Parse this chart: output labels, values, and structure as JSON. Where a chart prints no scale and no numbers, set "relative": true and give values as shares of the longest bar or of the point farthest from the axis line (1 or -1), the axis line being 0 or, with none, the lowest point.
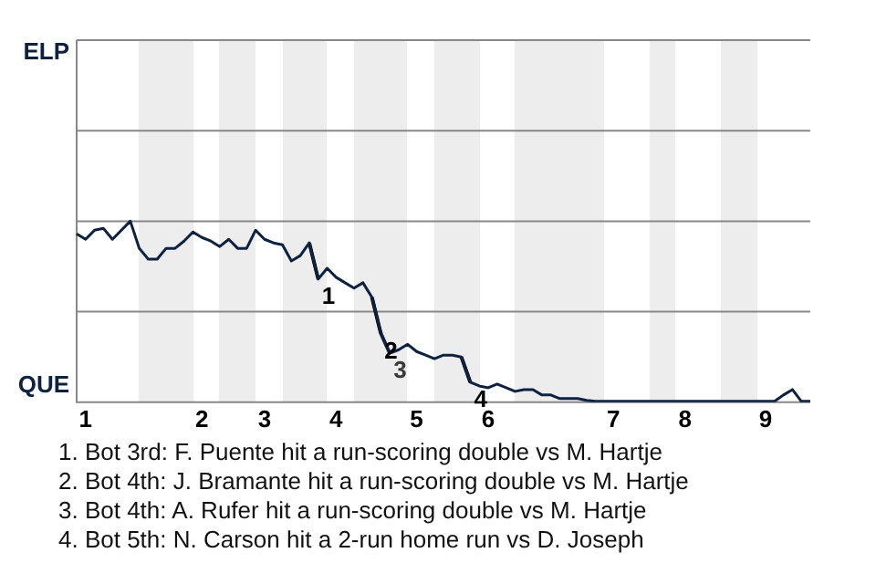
{
  "chart_data": {
    "type": "line",
    "relative": true,
    "categories": [
      null,
      "1",
      null,
      null,
      null,
      null,
      null,
      null,
      null,
      null,
      null,
      null,
      null,
      null,
      "2",
      null,
      null,
      null,
      null,
      null,
      null,
      "3",
      null,
      null,
      null,
      null,
      null,
      null,
      null,
      "4",
      null,
      null,
      null,
      null,
      null,
      null,
      null,
      null,
      "5",
      null,
      null,
      null,
      null,
      null,
      null,
      null,
      "6",
      null,
      null,
      null,
      null,
      null,
      null,
      null,
      null,
      null,
      null,
      null,
      null,
      null,
      "7",
      null,
      null,
      null,
      null,
      null,
      null,
      null,
      "8",
      null,
      null,
      null,
      null,
      null,
      null,
      null,
      null,
      "9",
      null,
      null,
      null,
      null,
      null
    ],
    "series": [
      {
        "color": "#0d2240",
        "values": [
          0.93,
          0.9,
          0.95,
          0.96,
          0.9,
          0.95,
          1,
          0.85,
          0.79,
          0.79,
          0.85,
          0.85,
          0.89,
          0.94,
          0.91,
          0.89,
          0.86,
          0.9,
          0.85,
          0.85,
          0.95,
          0.9,
          0.88,
          0.87,
          0.78,
          0.81,
          0.88,
          0.68,
          0.74,
          0.69,
          0.66,
          0.63,
          0.66,
          0.58,
          0.38,
          0.27,
          0.29,
          0.32,
          0.28,
          0.26,
          0.24,
          0.26,
          0.26,
          0.25,
          0.11,
          0.09,
          0.08,
          0.1,
          0.08,
          0.06,
          0.07,
          0.07,
          0.04,
          0.04,
          0.02,
          0.02,
          0.02,
          0.01,
          0.005,
          0.005,
          0.005,
          0.005,
          0.005,
          0.005,
          0.005,
          0.005,
          0.005,
          0.005,
          0.005,
          0.005,
          0.005,
          0.005,
          0.005,
          0.005,
          0.005,
          0.005,
          0.005,
          0.005,
          0.005,
          0.04,
          0.07,
          0.005,
          0.005
        ]
      },
      {
        "name": "1",
        "color": "#000000",
        "values": [
          null,
          null,
          null,
          null,
          null,
          null,
          null,
          null,
          null,
          null,
          null,
          null,
          null,
          null,
          null,
          null,
          null,
          null,
          null,
          null,
          null,
          null,
          null,
          null,
          null,
          null,
          0.88,
          0.68,
          null,
          null,
          null,
          null,
          null,
          null,
          null,
          null,
          null,
          null,
          null,
          null,
          null,
          null,
          null,
          null,
          null,
          null,
          null,
          null,
          null,
          null,
          null,
          null,
          null,
          null,
          null,
          null,
          null,
          null,
          null,
          null,
          null,
          null,
          null,
          null,
          null,
          null,
          null,
          null,
          null,
          null,
          null,
          null,
          null,
          null,
          null,
          null,
          null,
          null,
          null,
          null,
          null,
          null,
          null
        ]
      },
      {
        "name": "2",
        "color": "#000000",
        "values": [
          null,
          null,
          null,
          null,
          null,
          null,
          null,
          null,
          null,
          null,
          null,
          null,
          null,
          null,
          null,
          null,
          null,
          null,
          null,
          null,
          null,
          null,
          null,
          null,
          null,
          null,
          null,
          null,
          null,
          null,
          null,
          null,
          null,
          0.58,
          0.38,
          null,
          null,
          null,
          null,
          null,
          null,
          null,
          null,
          null,
          null,
          null,
          null,
          null,
          null,
          null,
          null,
          null,
          null,
          null,
          null,
          null,
          null,
          null,
          null,
          null,
          null,
          null,
          null,
          null,
          null,
          null,
          null,
          null,
          null,
          null,
          null,
          null,
          null,
          null,
          null,
          null,
          null,
          null,
          null,
          null,
          null,
          null,
          null
        ]
      },
      {
        "name": "3",
        "color": "#3a3a3a",
        "values": [
          null,
          null,
          null,
          null,
          null,
          null,
          null,
          null,
          null,
          null,
          null,
          null,
          null,
          null,
          null,
          null,
          null,
          null,
          null,
          null,
          null,
          null,
          null,
          null,
          null,
          null,
          null,
          null,
          null,
          null,
          null,
          null,
          null,
          null,
          0.38,
          0.27,
          null,
          null,
          null,
          null,
          null,
          null,
          null,
          null,
          null,
          null,
          null,
          null,
          null,
          null,
          null,
          null,
          null,
          null,
          null,
          null,
          null,
          null,
          null,
          null,
          null,
          null,
          null,
          null,
          null,
          null,
          null,
          null,
          null,
          null,
          null,
          null,
          null,
          null,
          null,
          null,
          null,
          null,
          null,
          null,
          null,
          null,
          null
        ]
      },
      {
        "name": "4",
        "color": "#000000",
        "values": [
          null,
          null,
          null,
          null,
          null,
          null,
          null,
          null,
          null,
          null,
          null,
          null,
          null,
          null,
          null,
          null,
          null,
          null,
          null,
          null,
          null,
          null,
          null,
          null,
          null,
          null,
          null,
          null,
          null,
          null,
          null,
          null,
          null,
          null,
          null,
          null,
          null,
          null,
          null,
          null,
          null,
          null,
          null,
          0.25,
          0.11,
          null,
          null,
          null,
          null,
          null,
          null,
          null,
          null,
          null,
          null,
          null,
          null,
          null,
          null,
          null,
          null,
          null,
          null,
          null,
          null,
          null,
          null,
          null,
          null,
          null,
          null,
          null,
          null,
          null,
          null,
          null,
          null,
          null,
          null,
          null,
          null,
          null,
          null
        ]
      }
    ],
    "legend": false,
    "marker": "none",
    "line_style": "solid",
    "ref_lines": [
      {
        "axis": "y",
        "value": 0.5,
        "color": "#888888"
      },
      {
        "axis": "y",
        "value": 1,
        "color": "#888888"
      },
      {
        "axis": "y",
        "value": 1.5,
        "color": "#888888"
      },
      {
        "axis": "y",
        "value": 2,
        "color": "#888888"
      }
    ],
    "annotations": [
      "ELP",
      "QUE",
      "1. Bot 3rd: F. Puente hit a run-scoring double vs M. Hartje",
      "2. Bot 4th: J. Bramante hit a run-scoring double vs M. Hartje",
      "3. Bot 4th: A. Rufer hit a run-scoring double vs M. Hartje",
      "4. Bot 5th: N. Carson hit a 2-run home run vs D. Joseph"
    ]
  }
}
